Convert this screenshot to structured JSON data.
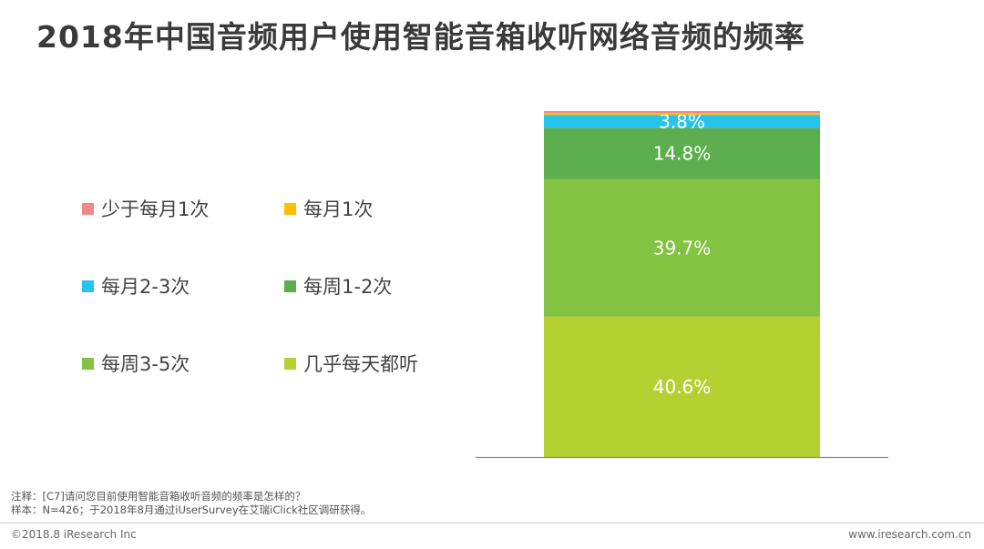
{
  "title": "2018年中国音频用户使用智能音箱收听网络音频的频率",
  "colors": {
    "lt_monthly": "#ef8a86",
    "monthly": "#ffc000",
    "monthly_2_3": "#27c3ea",
    "weekly_1_2": "#5cae4e",
    "weekly_3_5": "#82c341",
    "almost_daily": "#b3d232"
  },
  "chart_data": {
    "type": "bar",
    "stacked": true,
    "categories": [
      ""
    ],
    "ylim": [
      0,
      100
    ],
    "series": [
      {
        "name": "几乎每天都听",
        "values": [
          40.6
        ],
        "label": "40.6%",
        "color": "#b3d232"
      },
      {
        "name": "每周3-5次",
        "values": [
          39.7
        ],
        "label": "39.7%",
        "color": "#82c341"
      },
      {
        "name": "每周1-2次",
        "values": [
          14.8
        ],
        "label": "14.8%",
        "color": "#5cae4e"
      },
      {
        "name": "每月2-3次",
        "values": [
          3.8
        ],
        "label": "3.8%",
        "color": "#27c3ea"
      },
      {
        "name": "每月1次",
        "values": [
          0.5
        ],
        "label": "",
        "color": "#ffc000"
      },
      {
        "name": "少于每月1次",
        "values": [
          0.6
        ],
        "label": "",
        "color": "#ef8a86"
      }
    ]
  },
  "legend": [
    {
      "label": "少于每月1次",
      "color": "#ef8a86"
    },
    {
      "label": "每月1次",
      "color": "#ffc000"
    },
    {
      "label": "每月2-3次",
      "color": "#27c3ea"
    },
    {
      "label": "每周1-2次",
      "color": "#5cae4e"
    },
    {
      "label": "每周3-5次",
      "color": "#82c341"
    },
    {
      "label": "几乎每天都听",
      "color": "#b3d232"
    }
  ],
  "notes": {
    "line1": "注释：[C7]请问您目前使用智能音箱收听音频的频率是怎样的？",
    "line2": "样本：N=426；于2018年8月通过iUserSurvey在艾瑞iClick社区调研获得。"
  },
  "footer": {
    "copyright": "©2018.8 iResearch Inc",
    "website": "www.iresearch.com.cn"
  }
}
